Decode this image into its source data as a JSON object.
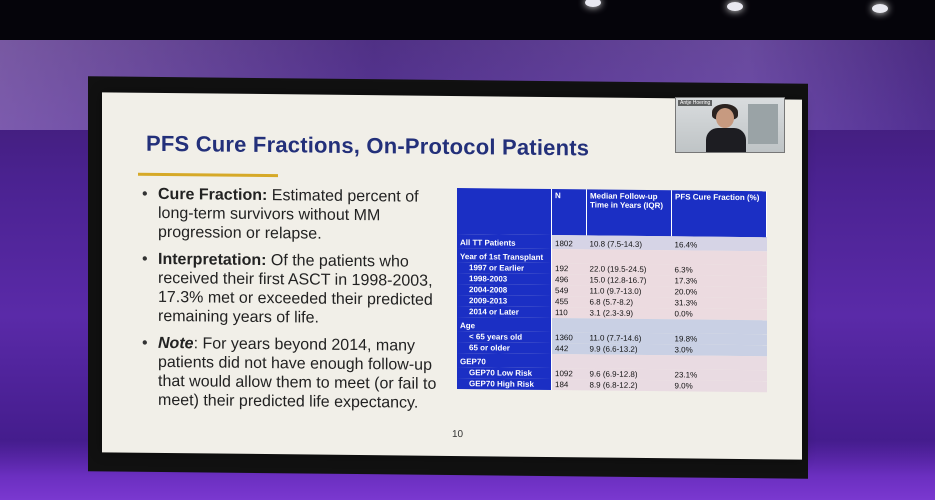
{
  "slide": {
    "title": "PFS Cure Fractions, On-Protocol Patients",
    "bullets": [
      {
        "head": "Cure Fraction:",
        "text": " Estimated percent of long-term survivors without MM progression or relapse."
      },
      {
        "head": "Interpretation:",
        "text": " Of the patients who received their first ASCT in 1998-2003, 17.3% met or exceeded their predicted remaining years of life."
      },
      {
        "head": "Note",
        "text": ": For years beyond 2014, many patients did not have enough follow-up that would allow them to meet (or fail to meet) their predicted life expectancy."
      }
    ],
    "page_number": "10"
  },
  "table": {
    "headers": [
      "",
      "N",
      "Median Follow-up Time in Years (IQR)",
      "PFS Cure Fraction (%)"
    ],
    "rows": [
      {
        "label": "All TT Patients",
        "n": "1802",
        "followup": "10.8 (7.5-14.3)",
        "cure": "16.4%"
      },
      {
        "label": "Year of 1st Transplant",
        "n": "",
        "followup": "",
        "cure": ""
      },
      {
        "label": "1997 or Earlier",
        "n": "192",
        "followup": "22.0 (19.5-24.5)",
        "cure": "6.3%"
      },
      {
        "label": "1998-2003",
        "n": "496",
        "followup": "15.0 (12.8-16.7)",
        "cure": "17.3%"
      },
      {
        "label": "2004-2008",
        "n": "549",
        "followup": "11.0 (9.7-13.0)",
        "cure": "20.0%"
      },
      {
        "label": "2009-2013",
        "n": "455",
        "followup": "6.8 (5.7-8.2)",
        "cure": "31.3%"
      },
      {
        "label": "2014 or Later",
        "n": "110",
        "followup": "3.1 (2.3-3.9)",
        "cure": "0.0%"
      },
      {
        "label": "Age",
        "n": "",
        "followup": "",
        "cure": ""
      },
      {
        "label": "< 65 years old",
        "n": "1360",
        "followup": "11.0 (7.7-14.6)",
        "cure": "19.8%"
      },
      {
        "label": "65 or older",
        "n": "442",
        "followup": "9.9 (6.6-13.2)",
        "cure": "3.0%"
      },
      {
        "label": "GEP70",
        "n": "",
        "followup": "",
        "cure": ""
      },
      {
        "label": "GEP70 Low Risk",
        "n": "1092",
        "followup": "9.6 (6.9-12.8)",
        "cure": "23.1%"
      },
      {
        "label": "GEP70 High Risk",
        "n": "184",
        "followup": "8.9 (6.8-12.2)",
        "cure": "9.0%"
      }
    ]
  },
  "speaker": {
    "name": "Antje Hoering"
  }
}
